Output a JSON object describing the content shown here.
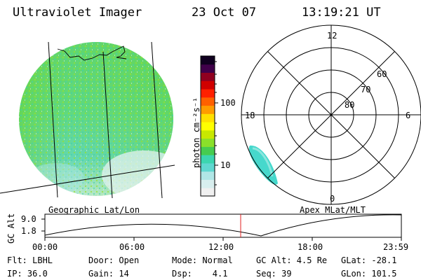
{
  "header": {
    "title": "Ultraviolet Imager",
    "date": "23 Oct 07",
    "time": "13:19:21 UT"
  },
  "colorbar": {
    "unit_label": "photon cm⁻²s⁻¹",
    "ticks": [
      "100",
      "10"
    ],
    "colors": [
      "#f0f0f0",
      "#d8eeee",
      "#b0e6e6",
      "#60d8d0",
      "#3cd6b0",
      "#46cc50",
      "#8ae02a",
      "#c8e800",
      "#ffff00",
      "#ffe000",
      "#ff9c00",
      "#ff6000",
      "#ff2000",
      "#d00000",
      "#900020",
      "#40004a",
      "#100020"
    ]
  },
  "left_map": {
    "caption": "Geographic Lat/Lon"
  },
  "polar_plot": {
    "caption": "Apex MLat/MLT",
    "mlt_labels": {
      "top": "12",
      "left": "18",
      "right": "6",
      "bottom": "0"
    },
    "lat_labels": [
      "60",
      "70",
      "80"
    ]
  },
  "altitude_plot": {
    "ylabel": "GC Alt",
    "y_ticks": [
      "9.0",
      "1.8"
    ],
    "x_ticks": [
      "00:00",
      "06:00",
      "12:00",
      "18:00",
      "23:59"
    ]
  },
  "info": {
    "flt": "Flt: LBHL",
    "ip": "IP: 36.0",
    "door": "Door: Open",
    "gain": "Gain: 14",
    "mode": "Mode: Normal",
    "dsp": "Dsp:    4.1",
    "gcalt": "GC Alt: 4.5 Re",
    "seq": "Seq: 39",
    "glat": "GLat: -28.1",
    "glon": "GLon: 101.5"
  }
}
